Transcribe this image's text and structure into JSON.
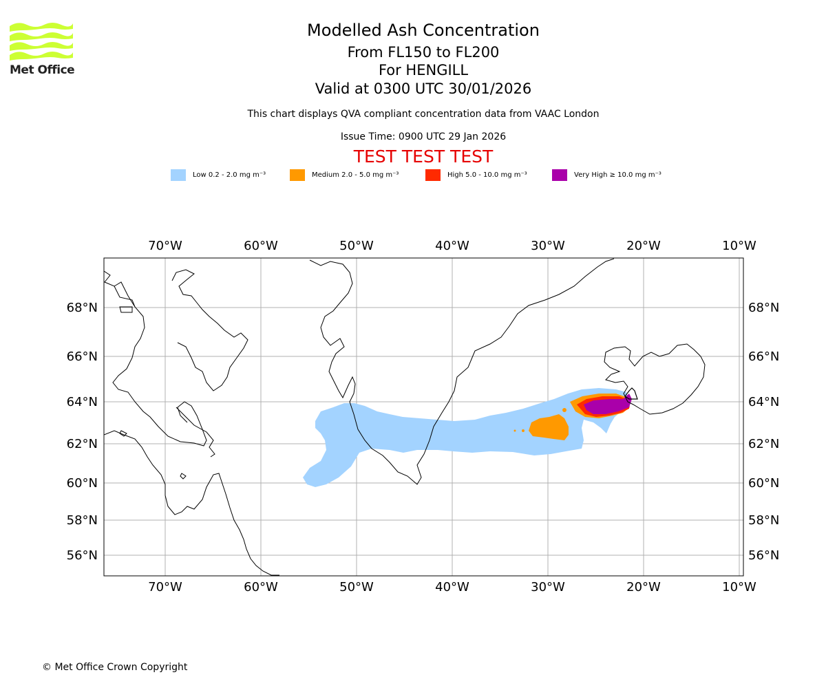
{
  "logo": {
    "text": "Met Office",
    "color": "#ccff33"
  },
  "header": {
    "title": "Modelled Ash Concentration",
    "levels": "From FL150 to FL200",
    "location": "For HENGILL",
    "valid": "Valid at 0300 UTC 30/01/2026",
    "description": "This chart displays QVA compliant concentration data from VAAC London",
    "issue_time": "Issue Time: 0900 UTC 29 Jan 2026",
    "test_banner": "TEST TEST TEST"
  },
  "legend": [
    {
      "label": "Low 0.2 - 2.0 mg m⁻³",
      "color": "#a3d3ff"
    },
    {
      "label": "Medium 2.0 - 5.0 mg m⁻³",
      "color": "#ff9900"
    },
    {
      "label": "High 5.0 - 10.0 mg m⁻³",
      "color": "#ff2a00"
    },
    {
      "label": "Very High ≥ 10.0 mg m⁻³",
      "color": "#aa00aa"
    }
  ],
  "map": {
    "lon_labels": [
      "70°W",
      "60°W",
      "50°W",
      "40°W",
      "30°W",
      "20°W",
      "10°W"
    ],
    "lat_labels": [
      "68°N",
      "66°N",
      "64°N",
      "62°N",
      "60°N",
      "58°N",
      "56°N"
    ],
    "source_volcano": "HENGILL"
  },
  "footer": {
    "copyright": "© Met Office Crown Copyright"
  }
}
